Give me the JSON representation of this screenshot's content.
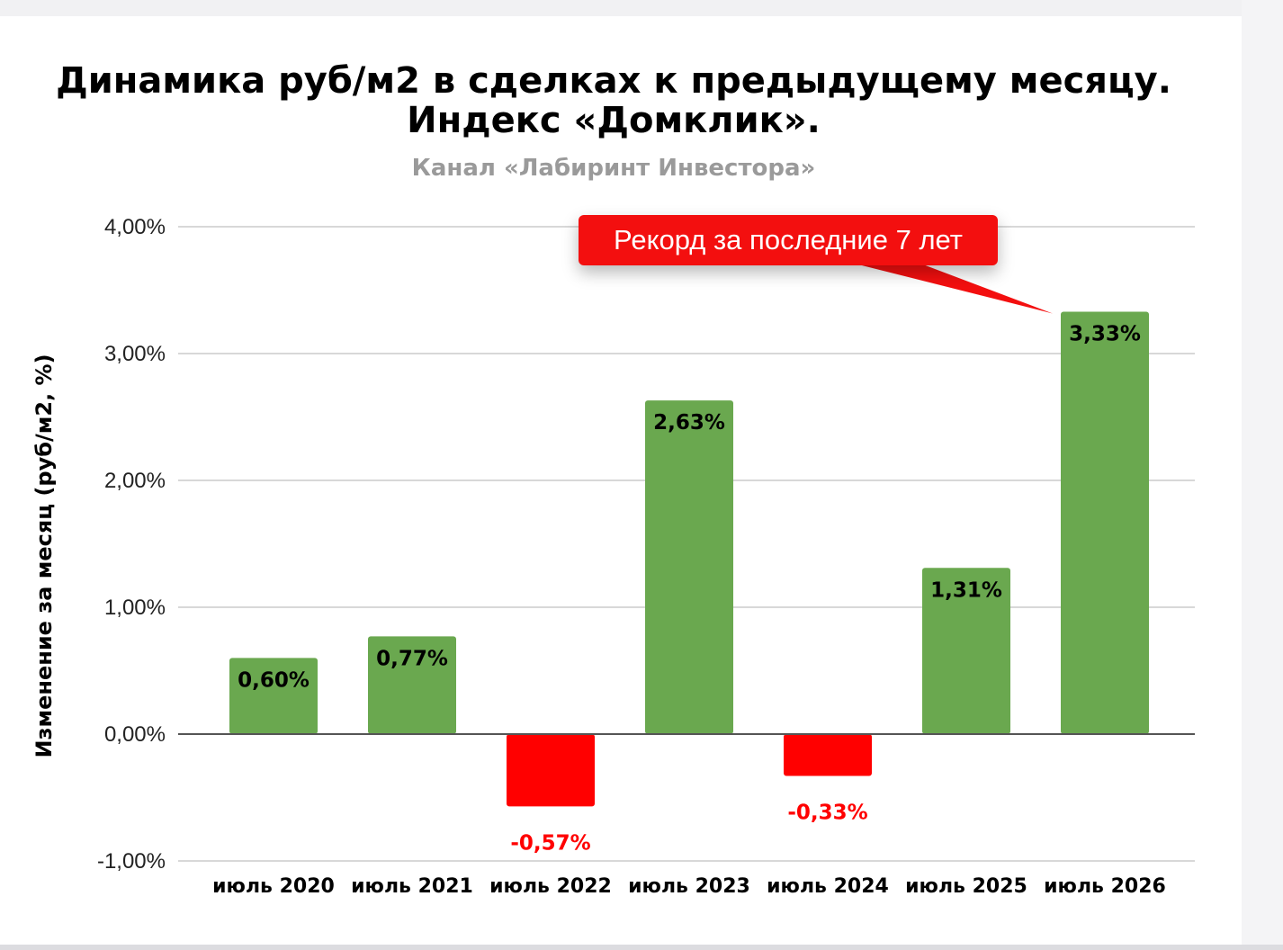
{
  "colors": {
    "positive": "#6aa84f",
    "negative": "#ff0000",
    "callout": "#f30f0f",
    "grid": "#cccccc",
    "zero_line": "#555555"
  },
  "chart_data": {
    "type": "bar",
    "title": "Динамика руб/м2 в сделках к предыдущему месяцу. Индекс «Домклик».",
    "subtitle": "Канал «Лабиринт Инвестора»",
    "xlabel": "",
    "ylabel": "Изменение за месяц (руб/м2, %)",
    "ylim": [
      -1,
      4
    ],
    "yticks": [
      {
        "value": 4,
        "label": "4,00%"
      },
      {
        "value": 3,
        "label": "3,00%"
      },
      {
        "value": 2,
        "label": "2,00%"
      },
      {
        "value": 1,
        "label": "1,00%"
      },
      {
        "value": 0,
        "label": "0,00%"
      },
      {
        "value": -1,
        "label": "-1,00%"
      }
    ],
    "categories": [
      "июль 2020",
      "июль 2021",
      "июль 2022",
      "июль 2023",
      "июль 2024",
      "июль 2025",
      "июль 2026"
    ],
    "values": [
      0.6,
      0.77,
      -0.57,
      2.63,
      -0.33,
      1.31,
      3.33
    ],
    "data_labels": [
      "0,60%",
      "0,77%",
      "-0,57%",
      "2,63%",
      "-0,33%",
      "1,31%",
      "3,33%"
    ],
    "grid": true,
    "legend": "none",
    "annotations": [
      {
        "text": "Рекорд за последние 7 лет",
        "target_category": "июль 2026"
      }
    ]
  }
}
